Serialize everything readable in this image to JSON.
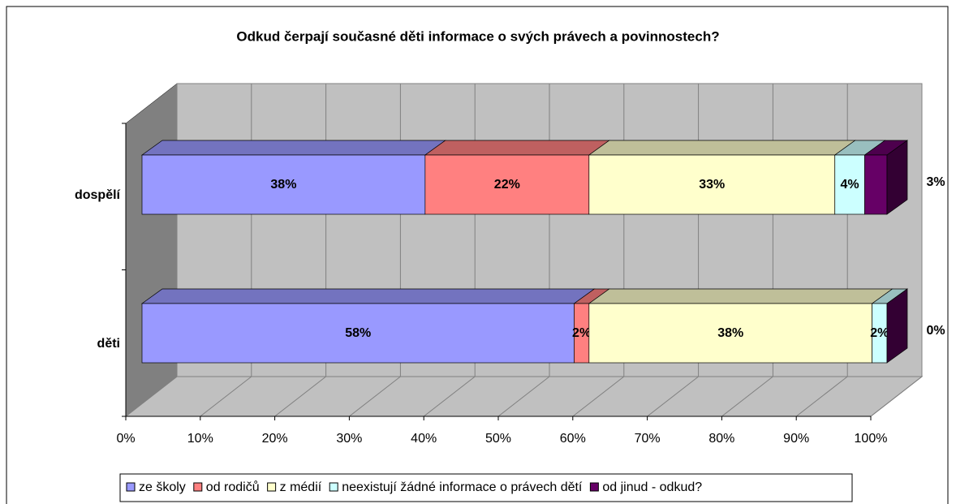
{
  "chart_data": {
    "type": "bar3d_stacked_h",
    "title": "Odkud čerpají současné děti informace o svých právech a povinnostech?",
    "categories": [
      "dospělí",
      "děti"
    ],
    "series": [
      {
        "name": "ze školy",
        "color": "#9999ff",
        "values": [
          38,
          58
        ],
        "value_labels": [
          "38%",
          "58%"
        ]
      },
      {
        "name": "od rodičů",
        "color": "#ff8080",
        "values": [
          22,
          2
        ],
        "value_labels": [
          "22%",
          "2%"
        ]
      },
      {
        "name": "z médií",
        "color": "#ffffcc",
        "values": [
          33,
          38
        ],
        "value_labels": [
          "33%",
          "38%"
        ]
      },
      {
        "name": "neexistují žádné informace o právech dětí",
        "color": "#ccffff",
        "values": [
          4,
          2
        ],
        "value_labels": [
          "4%",
          "2%"
        ]
      },
      {
        "name": "od jinud - odkud?",
        "color": "#660066",
        "values": [
          3,
          0
        ],
        "value_labels": [
          "3%",
          "0%"
        ]
      }
    ],
    "xlim": [
      0,
      100
    ],
    "xticks": [
      {
        "value": 0,
        "label": "0%"
      },
      {
        "value": 10,
        "label": "10%"
      },
      {
        "value": 20,
        "label": "20%"
      },
      {
        "value": 30,
        "label": "30%"
      },
      {
        "value": 40,
        "label": "40%"
      },
      {
        "value": 50,
        "label": "50%"
      },
      {
        "value": 60,
        "label": "60%"
      },
      {
        "value": 70,
        "label": "70%"
      },
      {
        "value": 80,
        "label": "80%"
      },
      {
        "value": 90,
        "label": "90%"
      },
      {
        "value": 100,
        "label": "100%"
      }
    ],
    "grid": true,
    "legend": "bottom"
  }
}
